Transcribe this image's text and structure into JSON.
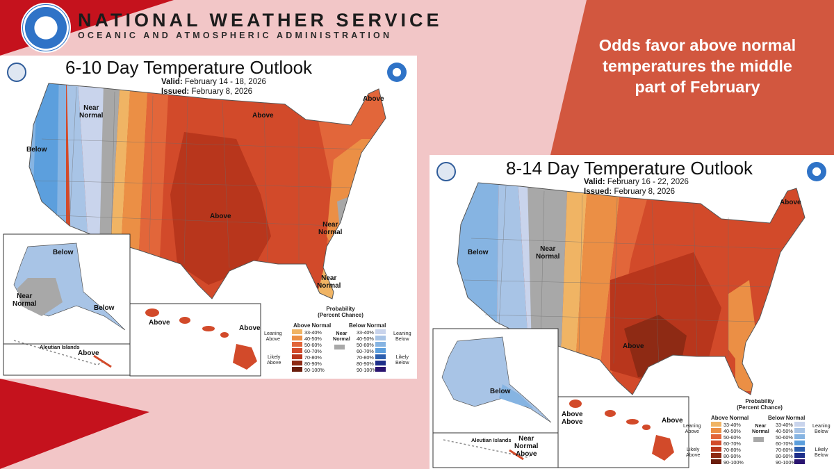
{
  "header": {
    "title": "NATIONAL WEATHER SERVICE",
    "subtitle": "OCEANIC AND ATMOSPHERIC ADMINISTRATION"
  },
  "headline": "Odds favor above normal temperatures the middle part of February",
  "colors": {
    "accent_red": "#c5121d",
    "headline_fill": "#d2573f",
    "background": "#f2c6c7"
  },
  "maps": [
    {
      "title": "6-10 Day Temperature Outlook",
      "valid_label": "Valid:",
      "valid": "February 14 - 18, 2026",
      "issued_label": "Issued:",
      "issued": "February 8, 2026",
      "labels": {
        "near_normal_nw": "Near\nNormal",
        "above_gl": "Above",
        "above_ne": "Above",
        "below_w": "Below",
        "above_c": "Above",
        "near_normal_se": "Near\nNormal",
        "near_normal_fl": "Near\nNormal",
        "ak_below_n": "Below",
        "ak_near_normal": "Near\nNormal",
        "ak_below_se": "Below",
        "aleutian_title": "Aleutian Islands",
        "aleutian_above": "Above",
        "hi_above_w": "Above",
        "hi_above_e": "Above"
      }
    },
    {
      "title": "8-14 Day Temperature Outlook",
      "valid_label": "Valid:",
      "valid": "February 16 - 22, 2026",
      "issued_label": "Issued:",
      "issued": "February 8, 2026",
      "labels": {
        "above_ne": "Above",
        "below_w": "Below",
        "near_normal_nw": "Near\nNormal",
        "above_c": "Above",
        "ak_below": "Below",
        "aleutian_title": "Aleutian Islands",
        "aleutian_near_normal": "Near\nNormal\nAbove",
        "hi_above_w": "Above\nAbove",
        "hi_above_e": "Above"
      }
    }
  ],
  "legend": {
    "title": "Probability\n(Percent Chance)",
    "above_header": "Above Normal",
    "below_header": "Below Normal",
    "near_normal": "Near\nNormal",
    "leaning_above": "Leaning\nAbove",
    "likely_above": "Likely\nAbove",
    "leaning_below": "Leaning\nBelow",
    "likely_below": "Likely\nBelow",
    "ranges": [
      "33-40%",
      "40-50%",
      "50-60%",
      "60-70%",
      "70-80%",
      "80-90%",
      "90-100%"
    ],
    "above_colors": [
      "#f0b464",
      "#eb8f45",
      "#e2663a",
      "#d24a2a",
      "#b8361c",
      "#8e2a14",
      "#6a1d0c"
    ],
    "below_colors": [
      "#c9d4ec",
      "#a8c4e6",
      "#86b4e2",
      "#5c9fdd",
      "#2d5fae",
      "#1e2f8a",
      "#2a1470"
    ],
    "near_color": "#a8a8a8"
  }
}
